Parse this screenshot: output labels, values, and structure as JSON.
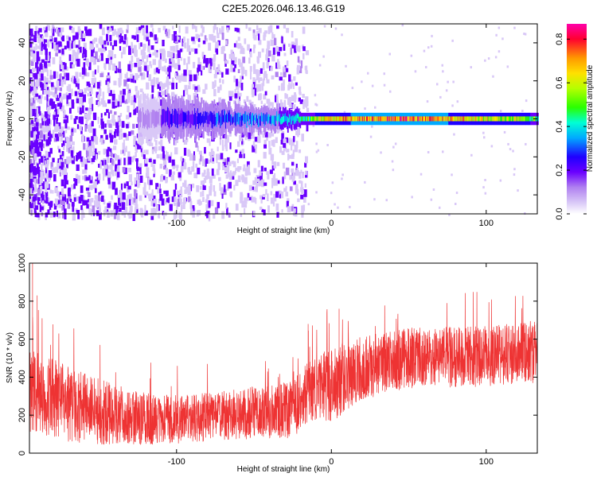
{
  "figure": {
    "title": "C2E5.2026.046.13.46.G19"
  },
  "chart_data": [
    {
      "type": "heatmap",
      "title": "C2E5.2026.046.13.46.G19",
      "xlabel": "Height of straight line (km)",
      "ylabel": "Frequency (Hz)",
      "xlim": [
        -195,
        133
      ],
      "ylim": [
        -50,
        50
      ],
      "xticks": [
        -100,
        0,
        100
      ],
      "yticks": [
        -40,
        -20,
        0,
        20,
        40
      ],
      "colorbar": {
        "label": "Normalized spectral amplitude",
        "range": [
          0,
          0.87
        ],
        "ticks": [
          0,
          0.2,
          0.4,
          0.6,
          0.8
        ],
        "colormap": [
          "#ffffff",
          "#d9c8f7",
          "#b080f0",
          "#6a00ff",
          "#1f00ff",
          "#00aaff",
          "#00ffd5",
          "#2aff00",
          "#b5ff00",
          "#ffe000",
          "#ff9900",
          "#ff0030",
          "#ff00aa"
        ]
      },
      "ridge": {
        "description_values": [
          {
            "x": -110,
            "amplitude": 0.25
          },
          {
            "x": -80,
            "amplitude": 0.3
          },
          {
            "x": -50,
            "amplitude": 0.35
          },
          {
            "x": -20,
            "amplitude": 0.45
          },
          {
            "x": 0,
            "amplitude": 0.7
          },
          {
            "x": 50,
            "amplitude": 0.8
          },
          {
            "x": 100,
            "amplitude": 0.65
          },
          {
            "x": 133,
            "amplitude": 0.55
          }
        ],
        "frequency": [
          {
            "x": -110,
            "f": 0
          },
          {
            "x": -60,
            "f": 0
          },
          {
            "x": -20,
            "f": -1
          },
          {
            "x": 0,
            "f": 0
          },
          {
            "x": 60,
            "f": 0
          },
          {
            "x": 133,
            "f": 0
          }
        ]
      },
      "noise_edge_x": -22,
      "grid": false
    },
    {
      "type": "line",
      "xlabel": "Height of straight line (km)",
      "ylabel": "SNR (10 * v/v)",
      "xlim": [
        -195,
        133
      ],
      "ylim": [
        0,
        1000
      ],
      "xticks": [
        -100,
        0,
        100
      ],
      "yticks": [
        0,
        200,
        400,
        600,
        800,
        1000
      ],
      "color": "#ee3333",
      "trend": [
        {
          "x": -195,
          "mean": 330,
          "spread": 220
        },
        {
          "x": -170,
          "mean": 260,
          "spread": 200
        },
        {
          "x": -140,
          "mean": 200,
          "spread": 160
        },
        {
          "x": -110,
          "mean": 175,
          "spread": 130
        },
        {
          "x": -80,
          "mean": 190,
          "spread": 130
        },
        {
          "x": -50,
          "mean": 210,
          "spread": 140
        },
        {
          "x": -25,
          "mean": 230,
          "spread": 150
        },
        {
          "x": -15,
          "mean": 320,
          "spread": 160
        },
        {
          "x": 0,
          "mean": 360,
          "spread": 200
        },
        {
          "x": 20,
          "mean": 450,
          "spread": 170
        },
        {
          "x": 50,
          "mean": 500,
          "spread": 160
        },
        {
          "x": 100,
          "mean": 510,
          "spread": 160
        },
        {
          "x": 133,
          "mean": 530,
          "spread": 170
        }
      ],
      "spikes": [
        {
          "x": -193,
          "y": 1000
        },
        {
          "x": -190,
          "y": 830
        },
        {
          "x": 5,
          "y": 760
        },
        {
          "x": -15,
          "y": 680
        }
      ],
      "grid": false
    }
  ]
}
